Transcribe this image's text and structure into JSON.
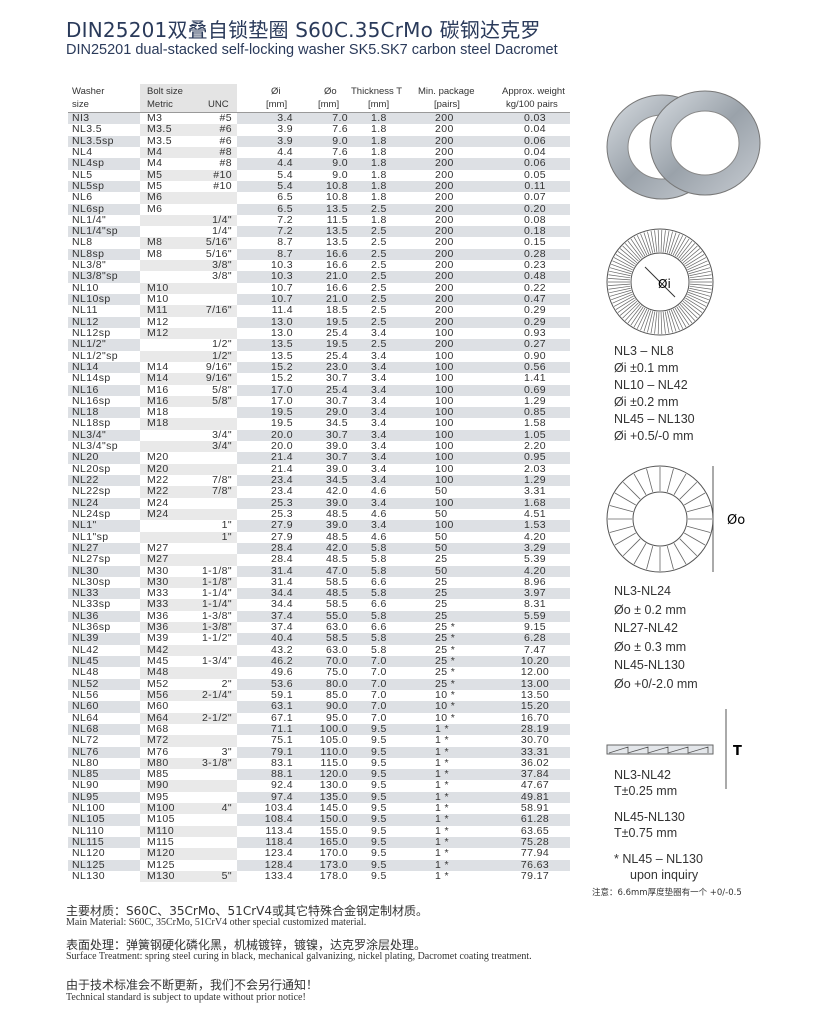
{
  "title": "DIN25201双叠自锁垫圈 S60C.35CrMo 碳钢达克罗",
  "subtitle": "DIN25201 dual-stacked self-locking washer SK5.SK7 carbon steel Dacromet",
  "table": {
    "headers": {
      "washer1": "Washer",
      "washer2": "size",
      "bolt": "Bolt size",
      "metric": "Metric",
      "unc": "UNC",
      "di": "Øi",
      "di_unit": "[mm]",
      "do": "Øo",
      "do_unit": "[mm]",
      "t": "Thickness T",
      "t_unit": "[mm]",
      "pkg": "Min. package",
      "pkg_unit": "[pairs]",
      "wt": "Approx. weight",
      "wt_unit": "kg/100 pairs"
    },
    "rows": [
      [
        "NI3",
        "M3",
        "#5",
        "3.4",
        "7.0",
        "1.8",
        "200",
        "0.03"
      ],
      [
        "NL3.5",
        "M3.5",
        "#6",
        "3.9",
        "7.6",
        "1.8",
        "200",
        "0.04"
      ],
      [
        "NL3.5sp",
        "M3.5",
        "#6",
        "3.9",
        "9.0",
        "1.8",
        "200",
        "0.06"
      ],
      [
        "NL4",
        "M4",
        "#8",
        "4.4",
        "7.6",
        "1.8",
        "200",
        "0.04"
      ],
      [
        "NL4sp",
        "M4",
        "#8",
        "4.4",
        "9.0",
        "1.8",
        "200",
        "0.06"
      ],
      [
        "NL5",
        "M5",
        "#10",
        "5.4",
        "9.0",
        "1.8",
        "200",
        "0.05"
      ],
      [
        "NL5sp",
        "M5",
        "#10",
        "5.4",
        "10.8",
        "1.8",
        "200",
        "0.11"
      ],
      [
        "NL6",
        "M6",
        "",
        "6.5",
        "10.8",
        "1.8",
        "200",
        "0.07"
      ],
      [
        "NL6sp",
        "M6",
        "",
        "6.5",
        "13.5",
        "2.5",
        "200",
        "0.20"
      ],
      [
        "NL1/4\"",
        "",
        "1/4\"",
        "7.2",
        "11.5",
        "1.8",
        "200",
        "0.08"
      ],
      [
        "NL1/4\"sp",
        "",
        "1/4\"",
        "7.2",
        "13.5",
        "2.5",
        "200",
        "0.18"
      ],
      [
        "NL8",
        "M8",
        "5/16\"",
        "8.7",
        "13.5",
        "2.5",
        "200",
        "0.15"
      ],
      [
        "NL8sp",
        "M8",
        "5/16\"",
        "8.7",
        "16.6",
        "2.5",
        "200",
        "0.28"
      ],
      [
        "NL3/8\"",
        "",
        "3/8\"",
        "10.3",
        "16.6",
        "2.5",
        "200",
        "0.23"
      ],
      [
        "NL3/8\"sp",
        "",
        "3/8\"",
        "10.3",
        "21.0",
        "2.5",
        "200",
        "0.48"
      ],
      [
        "NL10",
        "M10",
        "",
        "10.7",
        "16.6",
        "2.5",
        "200",
        "0.22"
      ],
      [
        "NL10sp",
        "M10",
        "",
        "10.7",
        "21.0",
        "2.5",
        "200",
        "0.47"
      ],
      [
        "NL11",
        "M11",
        "7/16\"",
        "11.4",
        "18.5",
        "2.5",
        "200",
        "0.29"
      ],
      [
        "NL12",
        "M12",
        "",
        "13.0",
        "19.5",
        "2.5",
        "200",
        "0.29"
      ],
      [
        "NL12sp",
        "M12",
        "",
        "13.0",
        "25.4",
        "3.4",
        "100",
        "0.93"
      ],
      [
        "NL1/2\"",
        "",
        "1/2\"",
        "13.5",
        "19.5",
        "2.5",
        "200",
        "0.27"
      ],
      [
        "NL1/2\"sp",
        "",
        "1/2\"",
        "13.5",
        "25.4",
        "3.4",
        "100",
        "0.90"
      ],
      [
        "NL14",
        "M14",
        "9/16\"",
        "15.2",
        "23.0",
        "3.4",
        "100",
        "0.56"
      ],
      [
        "NL14sp",
        "M14",
        "9/16\"",
        "15.2",
        "30.7",
        "3.4",
        "100",
        "1.41"
      ],
      [
        "NL16",
        "M16",
        "5/8\"",
        "17.0",
        "25.4",
        "3.4",
        "100",
        "0.69"
      ],
      [
        "NL16sp",
        "M16",
        "5/8\"",
        "17.0",
        "30.7",
        "3.4",
        "100",
        "1.29"
      ],
      [
        "NL18",
        "M18",
        "",
        "19.5",
        "29.0",
        "3.4",
        "100",
        "0.85"
      ],
      [
        "NL18sp",
        "M18",
        "",
        "19.5",
        "34.5",
        "3.4",
        "100",
        "1.58"
      ],
      [
        "NL3/4\"",
        "",
        "3/4\"",
        "20.0",
        "30.7",
        "3.4",
        "100",
        "1.05"
      ],
      [
        "NL3/4\"sp",
        "",
        "3/4\"",
        "20.0",
        "39.0",
        "3.4",
        "100",
        "2.20"
      ],
      [
        "NL20",
        "M20",
        "",
        "21.4",
        "30.7",
        "3.4",
        "100",
        "0.95"
      ],
      [
        "NL20sp",
        "M20",
        "",
        "21.4",
        "39.0",
        "3.4",
        "100",
        "2.03"
      ],
      [
        "NL22",
        "M22",
        "7/8\"",
        "23.4",
        "34.5",
        "3.4",
        "100",
        "1.29"
      ],
      [
        "NL22sp",
        "M22",
        "7/8\"",
        "23.4",
        "42.0",
        "4.6",
        "50",
        "3.31"
      ],
      [
        "NL24",
        "M24",
        "",
        "25.3",
        "39.0",
        "3.4",
        "100",
        "1.68"
      ],
      [
        "NL24sp",
        "M24",
        "",
        "25.3",
        "48.5",
        "4.6",
        "50",
        "4.51"
      ],
      [
        "NL1\"",
        "",
        "1\"",
        "27.9",
        "39.0",
        "3.4",
        "100",
        "1.53"
      ],
      [
        "NL1\"sp",
        "",
        "1\"",
        "27.9",
        "48.5",
        "4.6",
        "50",
        "4.20"
      ],
      [
        "NL27",
        "M27",
        "",
        "28.4",
        "42.0",
        "5.8",
        "50",
        "3.29"
      ],
      [
        "NL27sp",
        "M27",
        "",
        "28.4",
        "48.5",
        "5.8",
        "25",
        "5.39"
      ],
      [
        "NL30",
        "M30",
        "1-1/8\"",
        "31.4",
        "47.0",
        "5.8",
        "50",
        "4.20"
      ],
      [
        "NL30sp",
        "M30",
        "1-1/8\"",
        "31.4",
        "58.5",
        "6.6",
        "25",
        "8.96"
      ],
      [
        "NL33",
        "M33",
        "1-1/4\"",
        "34.4",
        "48.5",
        "5.8",
        "25",
        "3.97"
      ],
      [
        "NL33sp",
        "M33",
        "1-1/4\"",
        "34.4",
        "58.5",
        "6.6",
        "25",
        "8.31"
      ],
      [
        "NL36",
        "M36",
        "1-3/8\"",
        "37.4",
        "55.0",
        "5.8",
        "25",
        "5.59"
      ],
      [
        "NL36sp",
        "M36",
        "1-3/8\"",
        "37.4",
        "63.0",
        "6.6",
        "25 *",
        "9.15"
      ],
      [
        "NL39",
        "M39",
        "1-1/2\"",
        "40.4",
        "58.5",
        "5.8",
        "25 *",
        "6.28"
      ],
      [
        "NL42",
        "M42",
        "",
        "43.2",
        "63.0",
        "5.8",
        "25 *",
        "7.47"
      ],
      [
        "NL45",
        "M45",
        "1-3/4\"",
        "46.2",
        "70.0",
        "7.0",
        "25 *",
        "10.20"
      ],
      [
        "NL48",
        "M48",
        "",
        "49.6",
        "75.0",
        "7.0",
        "25 *",
        "12.00"
      ],
      [
        "NL52",
        "M52",
        "2\"",
        "53.6",
        "80.0",
        "7.0",
        "25 *",
        "13.00"
      ],
      [
        "NL56",
        "M56",
        "2-1/4\"",
        "59.1",
        "85.0",
        "7.0",
        "10 *",
        "13.50"
      ],
      [
        "NL60",
        "M60",
        "",
        "63.1",
        "90.0",
        "7.0",
        "10 *",
        "15.20"
      ],
      [
        "NL64",
        "M64",
        "2-1/2\"",
        "67.1",
        "95.0",
        "7.0",
        "10 *",
        "16.70"
      ],
      [
        "NL68",
        "M68",
        "",
        "71.1",
        "100.0",
        "9.5",
        "1 *",
        "28.19"
      ],
      [
        "NL72",
        "M72",
        "",
        "75.1",
        "105.0",
        "9.5",
        "1 *",
        "30.70"
      ],
      [
        "NL76",
        "M76",
        "3\"",
        "79.1",
        "110.0",
        "9.5",
        "1 *",
        "33.31"
      ],
      [
        "NL80",
        "M80",
        "3-1/8\"",
        "83.1",
        "115.0",
        "9.5",
        "1 *",
        "36.02"
      ],
      [
        "NL85",
        "M85",
        "",
        "88.1",
        "120.0",
        "9.5",
        "1 *",
        "37.84"
      ],
      [
        "NL90",
        "M90",
        "",
        "92.4",
        "130.0",
        "9.5",
        "1 *",
        "47.67"
      ],
      [
        "NL95",
        "M95",
        "",
        "97.4",
        "135.0",
        "9.5",
        "1 *",
        "49.81"
      ],
      [
        "NL100",
        "M100",
        "4\"",
        "103.4",
        "145.0",
        "9.5",
        "1 *",
        "58.91"
      ],
      [
        "NL105",
        "M105",
        "",
        "108.4",
        "150.0",
        "9.5",
        "1 *",
        "61.28"
      ],
      [
        "NL110",
        "M110",
        "",
        "113.4",
        "155.0",
        "9.5",
        "1 *",
        "63.65"
      ],
      [
        "NL115",
        "M115",
        "",
        "118.4",
        "165.0",
        "9.5",
        "1 *",
        "75.28"
      ],
      [
        "NL120",
        "M120",
        "",
        "123.4",
        "170.0",
        "9.5",
        "1 *",
        "77.94"
      ],
      [
        "NL125",
        "M125",
        "",
        "128.4",
        "173.0",
        "9.5",
        "1 *",
        "76.63"
      ],
      [
        "NL130",
        "M130",
        "5\"",
        "133.4",
        "178.0",
        "9.5",
        "1 *",
        "79.17"
      ]
    ]
  },
  "tolerances": {
    "inner": [
      "NL3 – NL8",
      "Øi ±0.1 mm",
      "NL10 – NL42",
      "Øi ±0.2 mm",
      "NL45 – NL130",
      "Øi +0.5/-0 mm"
    ],
    "outer": [
      "NL3-NL24",
      "Øo ± 0.2 mm",
      "NL27-NL42",
      "Øo ± 0.3 mm",
      "NL45-NL130",
      "Øo +0/-2.0 mm"
    ],
    "thickness": [
      "NL3-NL42",
      "T±0.25 mm",
      "NL45-NL130",
      "T±0.75 mm",
      "* NL45 – NL130",
      "upon inquiry"
    ],
    "diagram_labels": {
      "di": "Øi",
      "do": "Øo",
      "t": "T"
    },
    "note": "注意：6.6mm厚度垫圈有一个 +0/-0.5"
  },
  "footer": {
    "material_cn": "主要材质：S60C、35CrMo、51CrV4或其它特殊合金钢定制材质。",
    "material_en": "Main Material: S60C, 35CrMo, 51CrV4 other special customized material.",
    "surface_cn": "表面处理：弹簧钢硬化磷化黑，机械镀锌，镀镍，达克罗涂层处理。",
    "surface_en": "Surface Treatment: spring steel curing in black, mechanical galvanizing, nickel plating, Dacromet coating treatment.",
    "notice_cn": "由于技术标准会不断更新，我们不会另行通知！",
    "notice_en": "Technical standard is subject to update without prior notice!"
  }
}
